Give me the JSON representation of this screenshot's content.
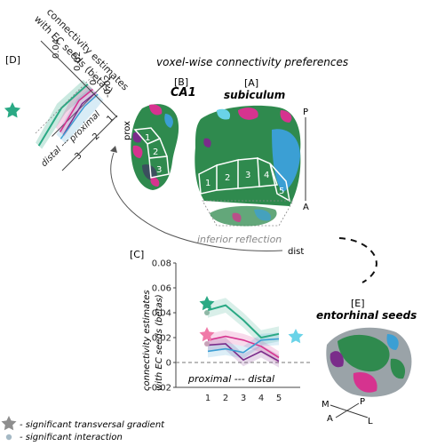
{
  "panel_labels": {
    "d": "[D]",
    "b": "[B]",
    "a": "[A]",
    "c": "[C]",
    "e": "[E]"
  },
  "title_main": "voxel-wise connectivity preferences",
  "region_ca1": "CA1",
  "region_subiculum": "subiculum",
  "region_entorhinal": "entorhinal seeds",
  "inferior_reflection": "inferior reflection",
  "prox_label": "prox",
  "dist_label": "dist",
  "pa_axis": {
    "p": "P",
    "a": "A"
  },
  "orientation": {
    "m": "M",
    "p": "P",
    "a": "A",
    "l": "L"
  },
  "subiculum_sections": [
    "1",
    "2",
    "3",
    "4",
    "5"
  ],
  "ca1_sections": [
    "1",
    "2",
    "3"
  ],
  "panel_d": {
    "ylabel_line1": "connectivity estimates",
    "ylabel_line2": "with EC seeds (betas)",
    "ticks": [
      "0.04",
      "0.02",
      "0",
      "-0.02"
    ],
    "xticks": [
      "1",
      "2",
      "3"
    ],
    "axis_label_proximal": "proximal",
    "axis_label_distal": "distal ---"
  },
  "legend": {
    "transversal": "- significant transversal gradient",
    "interaction": "- significant interaction"
  },
  "colors": {
    "green": "#2aa984",
    "magenta": "#d6338f",
    "purple": "#7a2c8a",
    "blue": "#3b9fd4",
    "cyan": "#6ad3e8",
    "star_pink": "#f07aa8",
    "surface_green": "#2f8a4e"
  },
  "chart_data": {
    "type": "line",
    "ylabel_line1": "connectivity estimates",
    "ylabel_line2": "with EC seeds (betas)",
    "xlabel": "proximal --- distal",
    "x": [
      1,
      2,
      3,
      4,
      5
    ],
    "ylim": [
      -0.02,
      0.08
    ],
    "yticks": [
      "0.08",
      "0.06",
      "0.04",
      "0.02",
      "0",
      "-0.02"
    ],
    "xticks": [
      "1",
      "2",
      "3",
      "4",
      "5"
    ],
    "series": [
      {
        "color": "green",
        "values": [
          0.042,
          0.046,
          0.034,
          0.02,
          0.023
        ]
      },
      {
        "color": "magenta",
        "values": [
          0.018,
          0.021,
          0.018,
          0.013,
          0.004
        ]
      },
      {
        "color": "purple",
        "values": [
          0.014,
          0.015,
          0.002,
          0.009,
          0.001
        ]
      },
      {
        "color": "blue",
        "values": [
          0.009,
          0.011,
          0.008,
          0.018,
          0.019
        ]
      }
    ]
  }
}
